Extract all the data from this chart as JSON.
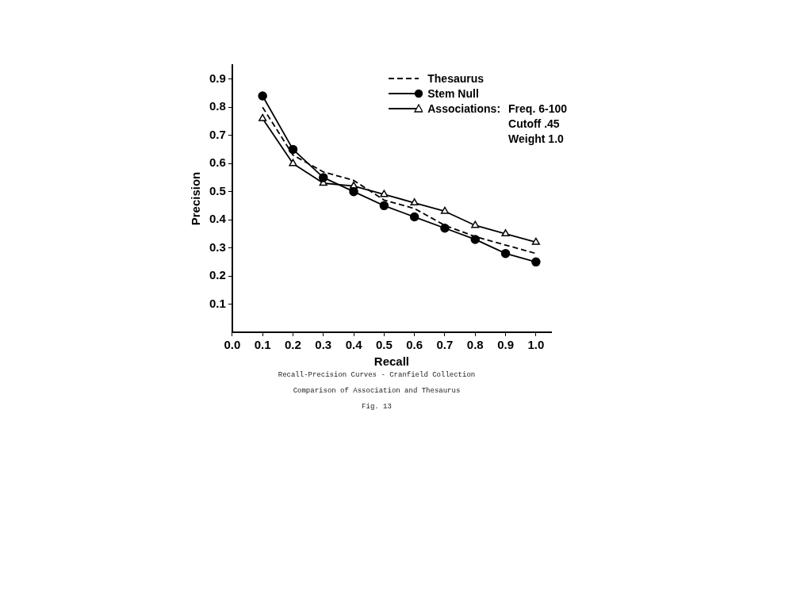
{
  "chart_data": {
    "type": "line",
    "xlabel": "Recall",
    "ylabel": "Precision",
    "x": [
      0.1,
      0.2,
      0.3,
      0.4,
      0.5,
      0.6,
      0.7,
      0.8,
      0.9,
      1.0
    ],
    "series": [
      {
        "name": "Thesaurus",
        "color": "#000000",
        "line_style": "dashed",
        "marker": "none",
        "values": [
          0.8,
          0.63,
          0.57,
          0.54,
          0.47,
          0.44,
          0.38,
          0.34,
          0.31,
          0.28
        ]
      },
      {
        "name": "Stem Null",
        "color": "#000000",
        "line_style": "solid",
        "marker": "circle",
        "values": [
          0.84,
          0.65,
          0.55,
          0.5,
          0.45,
          0.41,
          0.37,
          0.33,
          0.28,
          0.25
        ]
      },
      {
        "name": "Associations:",
        "color": "#000000",
        "line_style": "solid",
        "marker": "triangle",
        "values": [
          0.76,
          0.6,
          0.53,
          0.52,
          0.49,
          0.46,
          0.43,
          0.38,
          0.35,
          0.32
        ]
      }
    ],
    "xlim": [
      0,
      1.05
    ],
    "xticks": [
      {
        "value": 0,
        "label": "0.0"
      },
      0.1,
      0.2,
      0.3,
      0.4,
      0.5,
      0.6,
      0.7,
      0.8,
      0.9,
      {
        "value": 1,
        "label": "1.0"
      }
    ],
    "ylim": [
      0,
      0.95
    ],
    "yticks": [
      0.1,
      0.2,
      0.3,
      0.4,
      0.5,
      0.6,
      0.7,
      0.8,
      0.9
    ],
    "grid": false,
    "legend": "top right",
    "annotations": [
      "Freq. 6-100\nCutoff .45\nWeight 1.0",
      "Recall-Precision Curves - Cranfield Collection",
      "Comparison of Association and Thesaurus",
      "Fig. 13"
    ]
  }
}
